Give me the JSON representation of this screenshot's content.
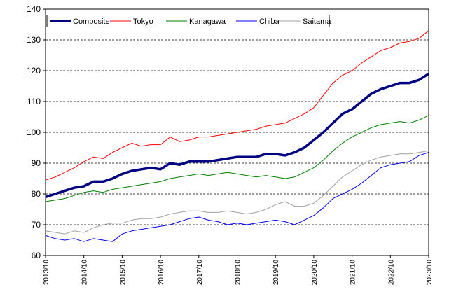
{
  "chart_data": {
    "type": "line",
    "ylim": [
      60,
      140
    ],
    "yticks": [
      60,
      70,
      80,
      90,
      100,
      110,
      120,
      130,
      140
    ],
    "xlim": [
      "2013/10",
      "2023/10"
    ],
    "xticks": [
      "2013/10",
      "2014/10",
      "2015/10",
      "2016/10",
      "2017/10",
      "2018/10",
      "2019/10",
      "2020/10",
      "2021/10",
      "2022/10",
      "2023/10"
    ],
    "grid": "horizontal dashed",
    "legend": "top-left",
    "series": [
      {
        "name": "Composite",
        "color": "#000080",
        "width": 3.5,
        "points": [
          [
            "2013/10",
            79
          ],
          [
            "2014/01",
            80
          ],
          [
            "2014/04",
            81
          ],
          [
            "2014/07",
            82
          ],
          [
            "2014/10",
            82.5
          ],
          [
            "2015/01",
            84
          ],
          [
            "2015/04",
            84
          ],
          [
            "2015/07",
            85
          ],
          [
            "2015/10",
            86.5
          ],
          [
            "2016/01",
            87.5
          ],
          [
            "2016/04",
            88
          ],
          [
            "2016/07",
            88.5
          ],
          [
            "2016/10",
            88
          ],
          [
            "2017/01",
            90
          ],
          [
            "2017/04",
            89.5
          ],
          [
            "2017/07",
            90.5
          ],
          [
            "2017/10",
            90.5
          ],
          [
            "2018/01",
            90.5
          ],
          [
            "2018/04",
            91
          ],
          [
            "2018/07",
            91.5
          ],
          [
            "2018/10",
            92
          ],
          [
            "2019/01",
            92
          ],
          [
            "2019/04",
            92
          ],
          [
            "2019/07",
            93
          ],
          [
            "2019/10",
            93
          ],
          [
            "2020/01",
            92.5
          ],
          [
            "2020/04",
            93.5
          ],
          [
            "2020/07",
            95
          ],
          [
            "2020/10",
            97.5
          ],
          [
            "2021/01",
            100
          ],
          [
            "2021/04",
            103
          ],
          [
            "2021/07",
            106
          ],
          [
            "2021/10",
            107.5
          ],
          [
            "2022/01",
            110
          ],
          [
            "2022/04",
            112.5
          ],
          [
            "2022/07",
            114
          ],
          [
            "2022/10",
            115
          ],
          [
            "2023/01",
            116
          ],
          [
            "2023/04",
            116
          ],
          [
            "2023/07",
            117
          ],
          [
            "2023/10",
            119
          ]
        ]
      },
      {
        "name": "Tokyo",
        "color": "#ff0000",
        "width": 1,
        "points": [
          [
            "2013/10",
            84.5
          ],
          [
            "2014/01",
            85.5
          ],
          [
            "2014/04",
            87
          ],
          [
            "2014/07",
            88.5
          ],
          [
            "2014/10",
            90.5
          ],
          [
            "2015/01",
            92
          ],
          [
            "2015/04",
            91.5
          ],
          [
            "2015/07",
            93.5
          ],
          [
            "2015/10",
            95
          ],
          [
            "2016/01",
            96.5
          ],
          [
            "2016/04",
            95.5
          ],
          [
            "2016/07",
            96
          ],
          [
            "2016/10",
            96
          ],
          [
            "2017/01",
            98.5
          ],
          [
            "2017/04",
            97
          ],
          [
            "2017/07",
            97.5
          ],
          [
            "2017/10",
            98.5
          ],
          [
            "2018/01",
            98.5
          ],
          [
            "2018/04",
            99
          ],
          [
            "2018/07",
            99.5
          ],
          [
            "2018/10",
            100
          ],
          [
            "2019/01",
            100.5
          ],
          [
            "2019/04",
            101
          ],
          [
            "2019/07",
            102
          ],
          [
            "2019/10",
            102.5
          ],
          [
            "2020/01",
            103
          ],
          [
            "2020/04",
            104.5
          ],
          [
            "2020/07",
            106
          ],
          [
            "2020/10",
            108
          ],
          [
            "2021/01",
            112
          ],
          [
            "2021/04",
            116
          ],
          [
            "2021/07",
            118.5
          ],
          [
            "2021/10",
            120
          ],
          [
            "2022/01",
            122.5
          ],
          [
            "2022/04",
            124.5
          ],
          [
            "2022/07",
            126.5
          ],
          [
            "2022/10",
            127.5
          ],
          [
            "2023/01",
            129
          ],
          [
            "2023/04",
            129.5
          ],
          [
            "2023/07",
            130.5
          ],
          [
            "2023/10",
            133
          ]
        ]
      },
      {
        "name": "Kanagawa",
        "color": "#008000",
        "width": 1,
        "points": [
          [
            "2013/10",
            77.5
          ],
          [
            "2014/01",
            78
          ],
          [
            "2014/04",
            78.5
          ],
          [
            "2014/07",
            79.5
          ],
          [
            "2014/10",
            80.5
          ],
          [
            "2015/01",
            81
          ],
          [
            "2015/04",
            80.5
          ],
          [
            "2015/07",
            81.5
          ],
          [
            "2015/10",
            82
          ],
          [
            "2016/01",
            82.5
          ],
          [
            "2016/04",
            83
          ],
          [
            "2016/07",
            83.5
          ],
          [
            "2016/10",
            84
          ],
          [
            "2017/01",
            85
          ],
          [
            "2017/04",
            85.5
          ],
          [
            "2017/07",
            86
          ],
          [
            "2017/10",
            86.5
          ],
          [
            "2018/01",
            86
          ],
          [
            "2018/04",
            86.5
          ],
          [
            "2018/07",
            87
          ],
          [
            "2018/10",
            86.5
          ],
          [
            "2019/01",
            86
          ],
          [
            "2019/04",
            85.5
          ],
          [
            "2019/07",
            86
          ],
          [
            "2019/10",
            85.5
          ],
          [
            "2020/01",
            85
          ],
          [
            "2020/04",
            85.5
          ],
          [
            "2020/07",
            87
          ],
          [
            "2020/10",
            88.5
          ],
          [
            "2021/01",
            91
          ],
          [
            "2021/04",
            94
          ],
          [
            "2021/07",
            96.5
          ],
          [
            "2021/10",
            98.5
          ],
          [
            "2022/01",
            100
          ],
          [
            "2022/04",
            101.5
          ],
          [
            "2022/07",
            102.5
          ],
          [
            "2022/10",
            103
          ],
          [
            "2023/01",
            103.5
          ],
          [
            "2023/04",
            103
          ],
          [
            "2023/07",
            104
          ],
          [
            "2023/10",
            105.5
          ]
        ]
      },
      {
        "name": "Chiba",
        "color": "#0000ff",
        "width": 1,
        "points": [
          [
            "2013/10",
            66.5
          ],
          [
            "2014/01",
            65.5
          ],
          [
            "2014/04",
            65
          ],
          [
            "2014/07",
            65.5
          ],
          [
            "2014/10",
            64.5
          ],
          [
            "2015/01",
            65.5
          ],
          [
            "2015/04",
            65
          ],
          [
            "2015/07",
            64.5
          ],
          [
            "2015/10",
            67
          ],
          [
            "2016/01",
            68
          ],
          [
            "2016/04",
            68.5
          ],
          [
            "2016/07",
            69
          ],
          [
            "2016/10",
            69.5
          ],
          [
            "2017/01",
            70
          ],
          [
            "2017/04",
            71
          ],
          [
            "2017/07",
            72
          ],
          [
            "2017/10",
            72.5
          ],
          [
            "2018/01",
            71.5
          ],
          [
            "2018/04",
            71
          ],
          [
            "2018/07",
            70
          ],
          [
            "2018/10",
            70.5
          ],
          [
            "2019/01",
            70
          ],
          [
            "2019/04",
            70.5
          ],
          [
            "2019/07",
            71
          ],
          [
            "2019/10",
            71.5
          ],
          [
            "2020/01",
            71
          ],
          [
            "2020/04",
            70
          ],
          [
            "2020/07",
            71.5
          ],
          [
            "2020/10",
            73
          ],
          [
            "2021/01",
            75.5
          ],
          [
            "2021/04",
            78.5
          ],
          [
            "2021/07",
            80
          ],
          [
            "2021/10",
            81.5
          ],
          [
            "2022/01",
            83.5
          ],
          [
            "2022/04",
            86
          ],
          [
            "2022/07",
            88.5
          ],
          [
            "2022/10",
            89.5
          ],
          [
            "2023/01",
            90
          ],
          [
            "2023/04",
            90.5
          ],
          [
            "2023/07",
            92.5
          ],
          [
            "2023/10",
            93.5
          ]
        ]
      },
      {
        "name": "Saitama",
        "color": "#a0a0a0",
        "width": 1,
        "points": [
          [
            "2013/10",
            68
          ],
          [
            "2014/01",
            67.5
          ],
          [
            "2014/04",
            67
          ],
          [
            "2014/07",
            68
          ],
          [
            "2014/10",
            67.5
          ],
          [
            "2015/01",
            69
          ],
          [
            "2015/04",
            70
          ],
          [
            "2015/07",
            70.5
          ],
          [
            "2015/10",
            70.5
          ],
          [
            "2016/01",
            71.5
          ],
          [
            "2016/04",
            72
          ],
          [
            "2016/07",
            72
          ],
          [
            "2016/10",
            72.5
          ],
          [
            "2017/01",
            73.5
          ],
          [
            "2017/04",
            74
          ],
          [
            "2017/07",
            74.5
          ],
          [
            "2017/10",
            74.5
          ],
          [
            "2018/01",
            74
          ],
          [
            "2018/04",
            74
          ],
          [
            "2018/07",
            74.5
          ],
          [
            "2018/10",
            74
          ],
          [
            "2019/01",
            73.5
          ],
          [
            "2019/04",
            74
          ],
          [
            "2019/07",
            75
          ],
          [
            "2019/10",
            76.5
          ],
          [
            "2020/01",
            77.5
          ],
          [
            "2020/04",
            76
          ],
          [
            "2020/07",
            76
          ],
          [
            "2020/10",
            77
          ],
          [
            "2021/01",
            79.5
          ],
          [
            "2021/04",
            82.5
          ],
          [
            "2021/07",
            85.5
          ],
          [
            "2021/10",
            87.5
          ],
          [
            "2022/01",
            89.5
          ],
          [
            "2022/04",
            91
          ],
          [
            "2022/07",
            92
          ],
          [
            "2022/10",
            92.5
          ],
          [
            "2023/01",
            93
          ],
          [
            "2023/04",
            93
          ],
          [
            "2023/07",
            93.5
          ],
          [
            "2023/10",
            94
          ]
        ]
      }
    ]
  }
}
